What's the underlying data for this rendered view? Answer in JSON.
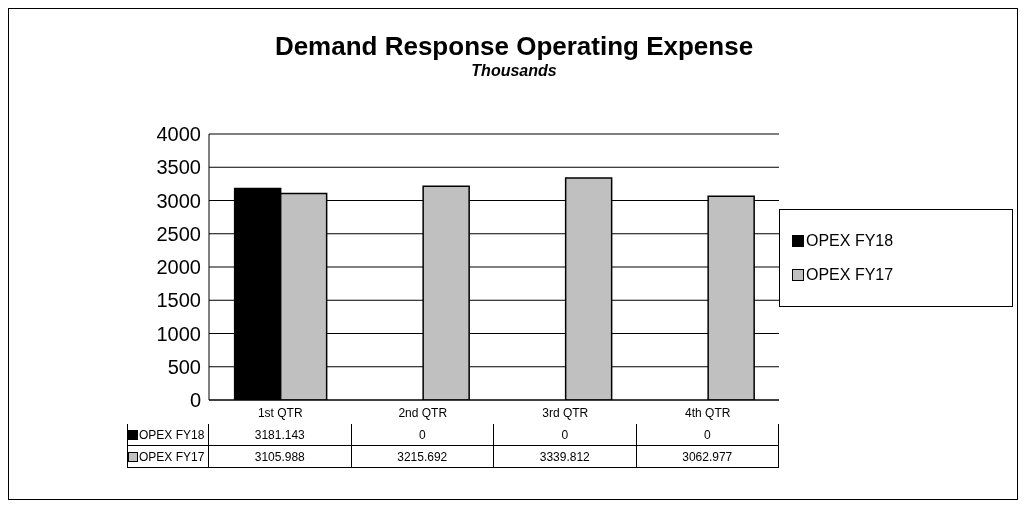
{
  "chart_data": {
    "type": "bar",
    "title": "Demand Response Operating Expense",
    "subtitle": "Thousands",
    "categories": [
      "1st QTR",
      "2nd QTR",
      "3rd QTR",
      "4th QTR"
    ],
    "series": [
      {
        "name": "OPEX FY18",
        "color": "#000000",
        "values": [
          3181.143,
          0,
          0,
          0
        ]
      },
      {
        "name": "OPEX FY17",
        "color": "#c0c0c0",
        "values": [
          3105.988,
          3215.692,
          3339.812,
          3062.977
        ]
      }
    ],
    "ylim": [
      0,
      4000
    ],
    "yticks": [
      0,
      500,
      1000,
      1500,
      2000,
      2500,
      3000,
      3500,
      4000
    ],
    "grid": "y",
    "legend": "right",
    "data_labels": true
  }
}
